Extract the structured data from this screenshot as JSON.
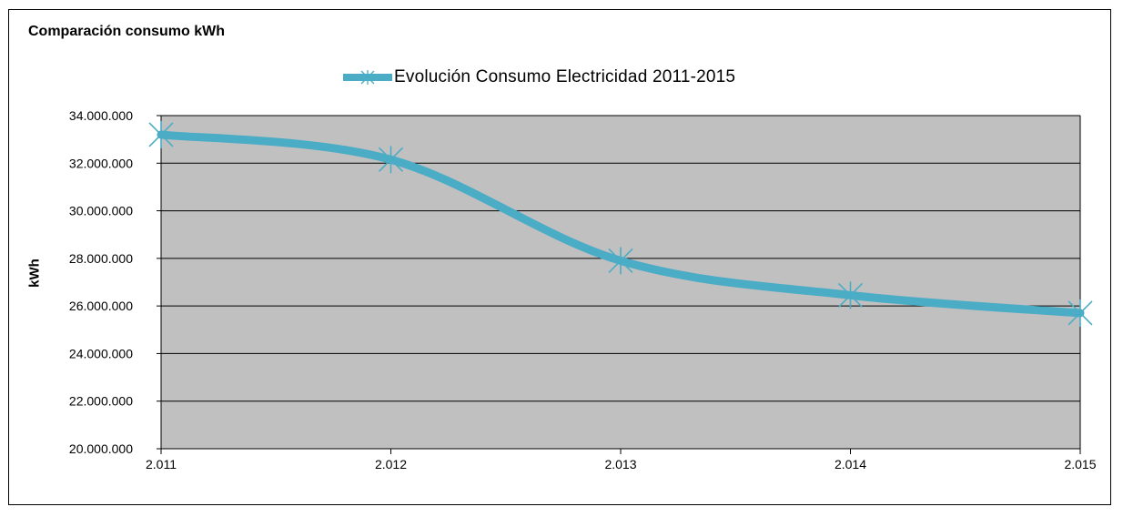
{
  "chart_data": {
    "type": "line",
    "title": "Comparación consumo kWh",
    "ylabel": "kWh",
    "xlabel": "",
    "categories": [
      "2.011",
      "2.012",
      "2.013",
      "2.014",
      "2.015"
    ],
    "series": [
      {
        "name": "Evolución Consumo Electricidad 2011-2015",
        "values": [
          33200000,
          32150000,
          27900000,
          26450000,
          25700000
        ],
        "color": "#4bacc6",
        "marker": "star"
      }
    ],
    "ylim": [
      20000000,
      34000000
    ],
    "yticks": [
      20000000,
      22000000,
      24000000,
      26000000,
      28000000,
      30000000,
      32000000,
      34000000
    ],
    "ytick_labels": [
      "20.000.000",
      "22.000.000",
      "24.000.000",
      "26.000.000",
      "28.000.000",
      "30.000.000",
      "32.000.000",
      "34.000.000"
    ],
    "grid": true,
    "legend_position": "top-center",
    "plot_background": "#c0c0c0",
    "gridline_color": "#000000"
  }
}
